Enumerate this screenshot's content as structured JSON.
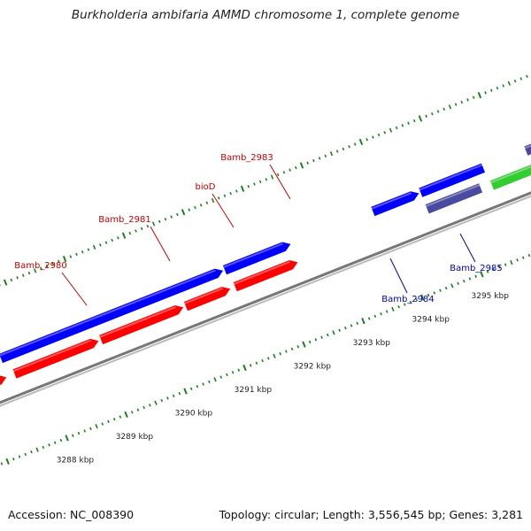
{
  "title": "Burkholderia ambifaria AMMD chromosome 1, complete genome",
  "footer": {
    "accession": "Accession: NC_008390",
    "topology": "Topology: circular; Length: 3,556,545 bp; Genes: 3,281"
  },
  "colors": {
    "forward_cds": "#0000ff",
    "reverse_cds": "#ff0000",
    "forward_other": "#4a4aa0",
    "other_feature": "#33cc33",
    "forward_label": "#0000b0",
    "reverse_label": "#c80000",
    "backbone": "#888888",
    "tick": "#1f7f1f"
  },
  "scale_labels": [
    {
      "label": "3288 kbp",
      "kbp": 3288
    },
    {
      "label": "3289 kbp",
      "kbp": 3289
    },
    {
      "label": "3290 kbp",
      "kbp": 3290
    },
    {
      "label": "3291 kbp",
      "kbp": 3291
    },
    {
      "label": "3292 kbp",
      "kbp": 3292
    },
    {
      "label": "3293 kbp",
      "kbp": 3293
    },
    {
      "label": "3294 kbp",
      "kbp": 3294
    },
    {
      "label": "3295 kbp",
      "kbp": 3295
    }
  ],
  "gene_labels": [
    {
      "name": "Bamb_2980",
      "strand": "reverse"
    },
    {
      "name": "Bamb_2981",
      "strand": "reverse"
    },
    {
      "name": "bioD",
      "strand": "reverse"
    },
    {
      "name": "Bamb_2983",
      "strand": "reverse"
    },
    {
      "name": "Bamb_2984",
      "strand": "forward"
    },
    {
      "name": "Bamb_2985",
      "strand": "forward"
    }
  ]
}
